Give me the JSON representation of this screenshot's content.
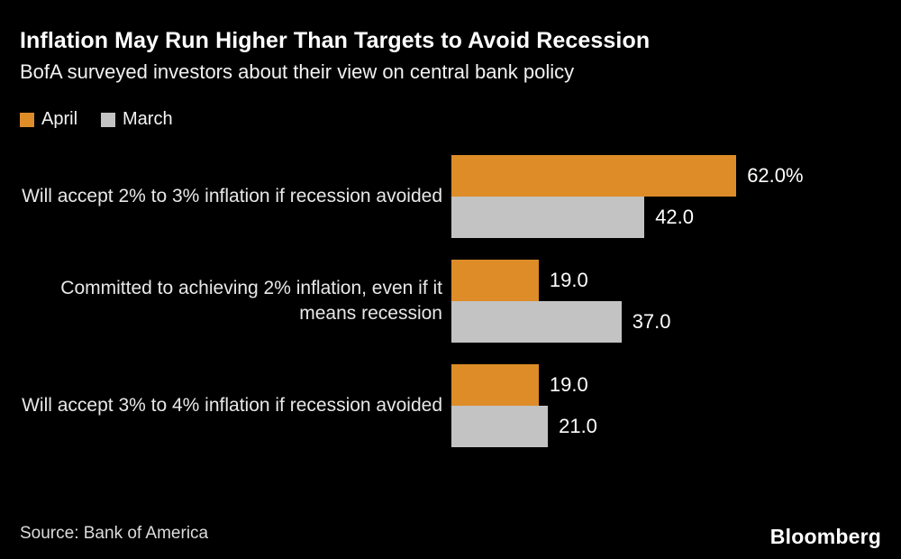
{
  "header": {
    "title": "Inflation May Run Higher Than Targets to Avoid Recession",
    "subtitle": "BofA surveyed investors about their view on central bank policy"
  },
  "footer": {
    "source": "Source: Bank of America",
    "brand": "Bloomberg"
  },
  "colors": {
    "background": "#000000",
    "title_text": "#FFFFFF",
    "april_orange": "#DD8C28",
    "march_gray": "#C3C3C3"
  },
  "chart_data": {
    "type": "bar",
    "orientation": "horizontal",
    "title": "Inflation May Run Higher Than Targets to Avoid Recession",
    "subtitle": "BofA surveyed investors about their view on central bank policy",
    "unit": "percent",
    "categories": [
      "Will accept 2% to 3% inflation if recession avoided",
      "Committed to achieving 2% inflation, even if it means recession",
      "Will accept 3% to 4% inflation if recession avoided"
    ],
    "series": [
      {
        "name": "April",
        "color": "#DD8C28",
        "values": [
          62.0,
          19.0,
          19.0
        ],
        "value_labels": [
          "62.0%",
          "19.0",
          "19.0"
        ]
      },
      {
        "name": "March",
        "color": "#C3C3C3",
        "values": [
          42.0,
          37.0,
          21.0
        ],
        "value_labels": [
          "42.0",
          "37.0",
          "21.0"
        ]
      }
    ],
    "xlim": [
      0,
      70
    ],
    "grid": false,
    "value_axis_visible": false,
    "legend_position": "top-left",
    "source": "Bank of America"
  }
}
